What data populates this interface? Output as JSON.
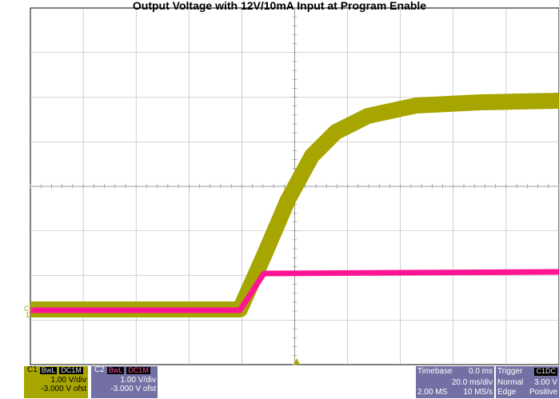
{
  "title": "Output Voltage with 12V/10mA Input at Program Enable",
  "colors": {
    "ch1": "#a7a500",
    "ch2": "#ff1493",
    "grid": "#b0b0b0",
    "panel": "#7371a4"
  },
  "channel1": {
    "name": "C1",
    "coupling": "BwL",
    "mode": "DC1M",
    "scale": "1.00 V/div",
    "offset": "-3.000 V ofst"
  },
  "channel2": {
    "name": "C2",
    "coupling": "BwL",
    "mode": "DC1M",
    "scale": "1.00 V/div",
    "offset": "-3.000 V ofst"
  },
  "timebase": {
    "label": "Timebase",
    "delay": "0.0 ms",
    "scale": "20.0 ms/div",
    "samples": "2.00 MS",
    "rate": "10 MS/s"
  },
  "trigger": {
    "label": "Trigger",
    "source": "C1DC",
    "mode": "Normal",
    "level": "3.00 V",
    "type": "Edge",
    "slope": "Positive"
  },
  "markers": {
    "c1": "1",
    "c2": "C2"
  }
}
